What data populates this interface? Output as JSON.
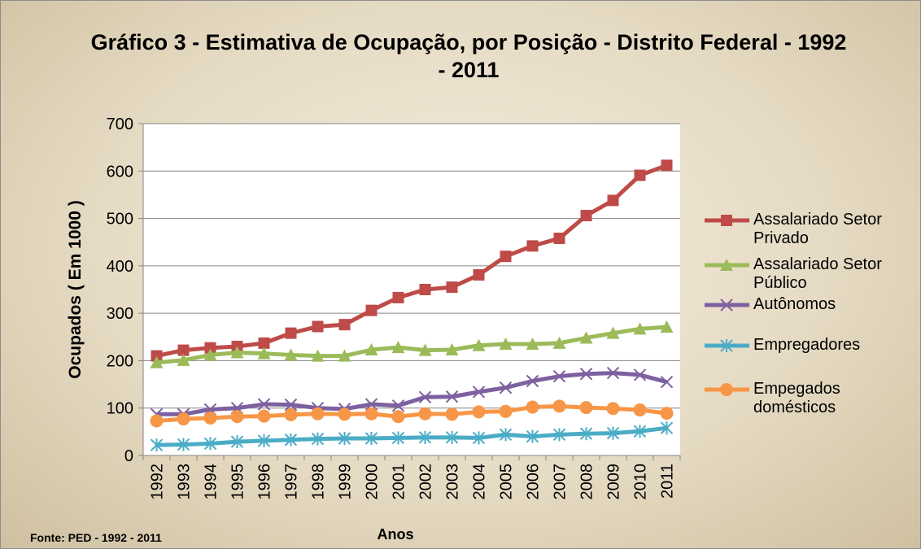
{
  "chart_data": {
    "type": "line",
    "title": "Gráfico 3 - Estimativa de Ocupação, por Posição - Distrito Federal - 1992 - 2011",
    "x_label": "Anos",
    "y_label": "Ocupados ( Em 1000 )",
    "source": "Fonte: PED - 1992 - 2011",
    "categories": [
      "1992",
      "1993",
      "1994",
      "1995",
      "1996",
      "1997",
      "1998",
      "1999",
      "2000",
      "2001",
      "2002",
      "2003",
      "2004",
      "2005",
      "2006",
      "2007",
      "2008",
      "2009",
      "2010",
      "2011"
    ],
    "ylim": [
      0,
      700
    ],
    "yticks": [
      0,
      100,
      200,
      300,
      400,
      500,
      600,
      700
    ],
    "grid": true,
    "legend": "right",
    "series": [
      {
        "name": "Assalariado Setor Privado",
        "color": "#be4b48",
        "marker": "square",
        "values": [
          210,
          222,
          227,
          230,
          237,
          258,
          272,
          276,
          306,
          333,
          350,
          355,
          381,
          420,
          442,
          458,
          506,
          538,
          591,
          612
        ]
      },
      {
        "name": "Assalariado Setor Público",
        "color": "#9bbb59",
        "marker": "triangle",
        "values": [
          196,
          201,
          212,
          217,
          215,
          212,
          210,
          210,
          223,
          228,
          222,
          223,
          232,
          235,
          235,
          237,
          248,
          258,
          267,
          271
        ]
      },
      {
        "name": "Autônomos",
        "color": "#7d60a0",
        "marker": "x",
        "values": [
          87,
          87,
          97,
          100,
          108,
          107,
          100,
          98,
          108,
          105,
          123,
          124,
          134,
          143,
          157,
          167,
          172,
          174,
          170,
          155
        ]
      },
      {
        "name": "Empregadores",
        "color": "#4bacc6",
        "marker": "star",
        "values": [
          22,
          23,
          25,
          29,
          31,
          33,
          35,
          36,
          36,
          37,
          38,
          38,
          37,
          44,
          40,
          44,
          46,
          47,
          51,
          58
        ]
      },
      {
        "name": "Empegados domésticos",
        "color": "#f79646",
        "marker": "circle",
        "values": [
          73,
          77,
          79,
          82,
          83,
          86,
          88,
          87,
          88,
          82,
          88,
          87,
          92,
          93,
          102,
          104,
          101,
          99,
          96,
          89
        ]
      }
    ]
  }
}
